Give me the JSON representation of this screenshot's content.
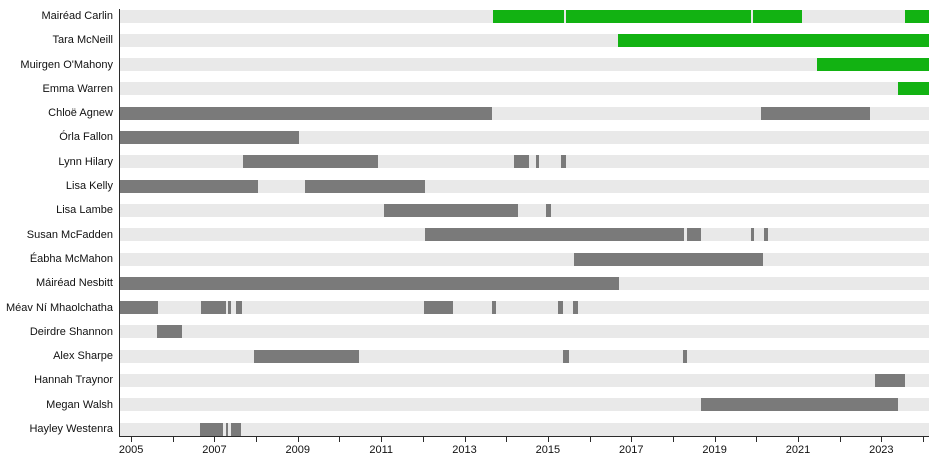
{
  "page": {
    "background": "#ffffff"
  },
  "chart_data": {
    "type": "gantt",
    "title": "",
    "xlabel": "",
    "ylabel": "",
    "legend": [],
    "grid": false,
    "colors": {
      "green": "#12b212",
      "gray": "#7a7a7a",
      "track": "#e9e9e9",
      "axis": "#2b2b2b",
      "text": "#111111"
    },
    "axis": {
      "start_year": 2004.71,
      "end_year": 2024.12,
      "tick_years": [
        2005,
        2006,
        2007,
        2008,
        2009,
        2010,
        2011,
        2012,
        2013,
        2014,
        2015,
        2016,
        2017,
        2018,
        2019,
        2020,
        2021,
        2022,
        2023,
        2024
      ],
      "label_years": [
        2005,
        2007,
        2009,
        2011,
        2013,
        2015,
        2017,
        2019,
        2021,
        2023
      ]
    },
    "members": [
      {
        "name": "Mairéad Carlin",
        "segments": [
          {
            "from": 2013.66,
            "to": 2015.37,
            "color": "green"
          },
          {
            "from": 2015.41,
            "to": 2019.85,
            "color": "green"
          },
          {
            "from": 2019.9,
            "to": 2021.08,
            "color": "green"
          },
          {
            "from": 2023.55,
            "to": 2024.12,
            "color": "green"
          }
        ]
      },
      {
        "name": "Tara McNeill",
        "segments": [
          {
            "from": 2016.66,
            "to": 2024.12,
            "color": "green"
          }
        ]
      },
      {
        "name": "Muirgen O'Mahony",
        "segments": [
          {
            "from": 2021.44,
            "to": 2024.12,
            "color": "green"
          }
        ]
      },
      {
        "name": "Emma Warren",
        "segments": [
          {
            "from": 2023.38,
            "to": 2024.12,
            "color": "green"
          }
        ]
      },
      {
        "name": "Chloë Agnew",
        "segments": [
          {
            "from": 2004.71,
            "to": 2013.64,
            "color": "gray"
          },
          {
            "from": 2020.09,
            "to": 2022.71,
            "color": "gray"
          }
        ]
      },
      {
        "name": "Órla Fallon",
        "segments": [
          {
            "from": 2004.71,
            "to": 2009.01,
            "color": "gray"
          }
        ]
      },
      {
        "name": "Lynn Hilary",
        "segments": [
          {
            "from": 2007.66,
            "to": 2010.9,
            "color": "gray"
          },
          {
            "from": 2014.17,
            "to": 2014.53,
            "color": "gray"
          },
          {
            "from": 2014.69,
            "to": 2014.76,
            "color": "gray"
          },
          {
            "from": 2015.29,
            "to": 2015.41,
            "color": "gray"
          }
        ]
      },
      {
        "name": "Lisa Kelly",
        "segments": [
          {
            "from": 2004.71,
            "to": 2008.02,
            "color": "gray"
          },
          {
            "from": 2009.15,
            "to": 2012.03,
            "color": "gray"
          }
        ]
      },
      {
        "name": "Lisa Lambe",
        "segments": [
          {
            "from": 2011.05,
            "to": 2014.26,
            "color": "gray"
          },
          {
            "from": 2014.93,
            "to": 2015.05,
            "color": "gray"
          }
        ]
      },
      {
        "name": "Susan McFadden",
        "segments": [
          {
            "from": 2012.03,
            "to": 2018.24,
            "color": "gray"
          },
          {
            "from": 2018.32,
            "to": 2018.65,
            "color": "gray"
          },
          {
            "from": 2019.85,
            "to": 2019.92,
            "color": "gray"
          },
          {
            "from": 2020.16,
            "to": 2020.26,
            "color": "gray"
          }
        ]
      },
      {
        "name": "Éabha McMahon",
        "segments": [
          {
            "from": 2015.6,
            "to": 2020.14,
            "color": "gray"
          }
        ]
      },
      {
        "name": "Máiréad Nesbitt",
        "segments": [
          {
            "from": 2004.71,
            "to": 2016.68,
            "color": "gray"
          }
        ]
      },
      {
        "name": "Méav Ní Mhaolchatha",
        "segments": [
          {
            "from": 2004.71,
            "to": 2005.62,
            "color": "gray"
          },
          {
            "from": 2006.65,
            "to": 2007.25,
            "color": "gray"
          },
          {
            "from": 2007.3,
            "to": 2007.38,
            "color": "gray"
          },
          {
            "from": 2007.49,
            "to": 2007.64,
            "color": "gray"
          },
          {
            "from": 2012.01,
            "to": 2012.7,
            "color": "gray"
          },
          {
            "from": 2013.64,
            "to": 2013.72,
            "color": "gray"
          },
          {
            "from": 2015.22,
            "to": 2015.33,
            "color": "gray"
          },
          {
            "from": 2015.58,
            "to": 2015.69,
            "color": "gray"
          }
        ]
      },
      {
        "name": "Deirdre Shannon",
        "segments": [
          {
            "from": 2005.6,
            "to": 2006.2,
            "color": "gray"
          }
        ]
      },
      {
        "name": "Alex Sharpe",
        "segments": [
          {
            "from": 2007.93,
            "to": 2010.44,
            "color": "gray"
          },
          {
            "from": 2015.34,
            "to": 2015.49,
            "color": "gray"
          },
          {
            "from": 2018.22,
            "to": 2018.31,
            "color": "gray"
          }
        ]
      },
      {
        "name": "Hannah Traynor",
        "segments": [
          {
            "from": 2022.83,
            "to": 2023.55,
            "color": "gray"
          }
        ]
      },
      {
        "name": "Megan Walsh",
        "segments": [
          {
            "from": 2018.65,
            "to": 2023.38,
            "color": "gray"
          }
        ]
      },
      {
        "name": "Hayley Westenra",
        "segments": [
          {
            "from": 2006.63,
            "to": 2007.18,
            "color": "gray"
          },
          {
            "from": 2007.25,
            "to": 2007.31,
            "color": "gray"
          },
          {
            "from": 2007.37,
            "to": 2007.61,
            "color": "gray"
          }
        ]
      }
    ]
  }
}
